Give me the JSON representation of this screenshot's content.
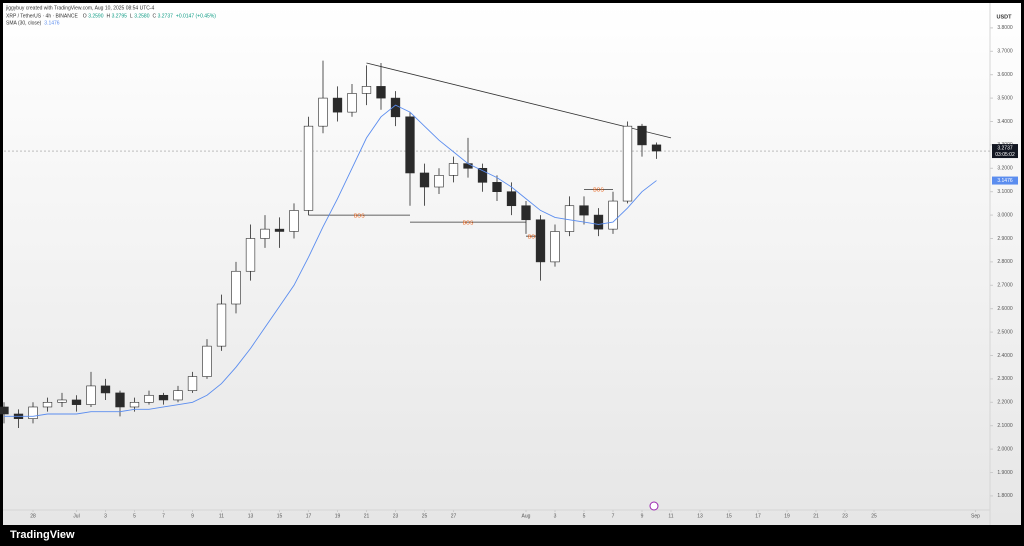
{
  "chart_data": {
    "type": "candlestick",
    "header": "jiggybuy created with TradingView.com, Aug 10, 2025 08:54 UTC-4",
    "symbol": "XRP / TetherUS · 4h · BINANCE",
    "ohlc_legend": [
      [
        "O",
        "3.2590"
      ],
      [
        "H",
        "3.2795"
      ],
      [
        "L",
        "3.2580"
      ],
      [
        "C",
        "3.2737"
      ]
    ],
    "change": "+0.0147 (+0.45%)",
    "currency": "USDT",
    "countdown": "03:05:02",
    "brand": "TradingView",
    "up_color": "#ffffff",
    "down_color": "#2a2a2a",
    "wick_color": "#2a2a2a",
    "x": [
      "2025-06-26",
      "2025-06-27",
      "2025-06-28",
      "2025-06-29",
      "2025-06-30",
      "2025-07-01",
      "2025-07-02",
      "2025-07-03",
      "2025-07-04",
      "2025-07-05",
      "2025-07-06",
      "2025-07-07",
      "2025-07-08",
      "2025-07-09",
      "2025-07-10",
      "2025-07-11",
      "2025-07-12",
      "2025-07-13",
      "2025-07-14",
      "2025-07-15",
      "2025-07-16",
      "2025-07-17",
      "2025-07-18",
      "2025-07-19",
      "2025-07-20",
      "2025-07-21",
      "2025-07-22",
      "2025-07-23",
      "2025-07-24",
      "2025-07-25",
      "2025-07-26",
      "2025-07-27",
      "2025-07-28",
      "2025-07-29",
      "2025-07-30",
      "2025-07-31",
      "2025-08-01",
      "2025-08-02",
      "2025-08-03",
      "2025-08-04",
      "2025-08-05",
      "2025-08-06",
      "2025-08-07",
      "2025-08-08",
      "2025-08-09",
      "2025-08-10"
    ],
    "open": [
      2.18,
      2.15,
      2.13,
      2.18,
      2.2,
      2.21,
      2.19,
      2.27,
      2.24,
      2.18,
      2.2,
      2.23,
      2.21,
      2.25,
      2.31,
      2.44,
      2.62,
      2.76,
      2.9,
      2.94,
      2.93,
      3.02,
      3.38,
      3.5,
      3.44,
      3.52,
      3.55,
      3.5,
      3.42,
      3.18,
      3.12,
      3.17,
      3.22,
      3.2,
      3.14,
      3.1,
      3.04,
      2.98,
      2.8,
      2.93,
      3.04,
      3.0,
      2.94,
      3.06,
      3.38,
      3.3
    ],
    "high": [
      2.2,
      2.17,
      2.2,
      2.22,
      2.24,
      2.23,
      2.33,
      2.3,
      2.25,
      2.22,
      2.25,
      2.24,
      2.27,
      2.33,
      2.47,
      2.66,
      2.8,
      2.96,
      3.0,
      2.99,
      3.05,
      3.42,
      3.66,
      3.55,
      3.56,
      3.64,
      3.65,
      3.53,
      3.44,
      3.22,
      3.2,
      3.25,
      3.33,
      3.22,
      3.17,
      3.14,
      3.06,
      3.0,
      2.96,
      3.08,
      3.08,
      3.03,
      3.1,
      3.4,
      3.39,
      3.31
    ],
    "low": [
      2.11,
      2.09,
      2.11,
      2.16,
      2.18,
      2.16,
      2.18,
      2.21,
      2.14,
      2.16,
      2.19,
      2.19,
      2.2,
      2.24,
      2.3,
      2.42,
      2.58,
      2.72,
      2.86,
      2.86,
      2.9,
      3.0,
      3.35,
      3.4,
      3.42,
      3.47,
      3.45,
      3.38,
      3.04,
      3.04,
      3.09,
      3.14,
      3.16,
      3.1,
      3.06,
      3.0,
      2.92,
      2.72,
      2.78,
      2.91,
      2.96,
      2.91,
      2.92,
      3.05,
      3.25,
      3.24
    ],
    "close": [
      2.15,
      2.13,
      2.18,
      2.2,
      2.21,
      2.19,
      2.27,
      2.24,
      2.18,
      2.2,
      2.23,
      2.21,
      2.25,
      2.31,
      2.44,
      2.62,
      2.76,
      2.9,
      2.94,
      2.93,
      3.02,
      3.38,
      3.5,
      3.44,
      3.52,
      3.55,
      3.5,
      3.42,
      3.18,
      3.12,
      3.17,
      3.22,
      3.2,
      3.14,
      3.1,
      3.04,
      2.98,
      2.8,
      2.93,
      3.04,
      3.0,
      2.94,
      3.06,
      3.38,
      3.3,
      3.2737
    ],
    "sma": {
      "name": "SMA (30, close)",
      "color": "#5b8def",
      "values": [
        2.14,
        2.14,
        2.14,
        2.15,
        2.15,
        2.15,
        2.16,
        2.16,
        2.16,
        2.17,
        2.17,
        2.18,
        2.19,
        2.2,
        2.23,
        2.28,
        2.35,
        2.43,
        2.52,
        2.61,
        2.7,
        2.82,
        2.95,
        3.07,
        3.2,
        3.33,
        3.42,
        3.47,
        3.44,
        3.38,
        3.32,
        3.27,
        3.22,
        3.19,
        3.16,
        3.12,
        3.07,
        3.02,
        2.99,
        2.98,
        2.97,
        2.96,
        2.97,
        3.03,
        3.1,
        3.1476
      ]
    },
    "trendline": {
      "from": [
        "2025-07-21",
        3.65
      ],
      "to": [
        "2025-08-11",
        3.33
      ]
    },
    "bos": [
      {
        "label": "BOS",
        "from": "2025-07-17",
        "to": "2025-07-24",
        "price": 3.0
      },
      {
        "label": "BOS",
        "from": "2025-07-24",
        "to": "2025-08-01",
        "price": 2.97
      },
      {
        "label": "BOS",
        "from": "2025-08-01",
        "to": "2025-08-02",
        "price": 2.91
      },
      {
        "label": "BOS",
        "from": "2025-08-05",
        "to": "2025-08-07",
        "price": 3.11
      }
    ],
    "bos_color": "#e8590c",
    "xlim": [
      "2025-06-26",
      "2025-09-02"
    ],
    "xticks": [
      {
        "value": "2025-06-28",
        "label": "28"
      },
      {
        "value": "2025-07-01",
        "label": "Jul"
      },
      {
        "value": "2025-07-03",
        "label": "3"
      },
      {
        "value": "2025-07-05",
        "label": "5"
      },
      {
        "value": "2025-07-07",
        "label": "7"
      },
      {
        "value": "2025-07-09",
        "label": "9"
      },
      {
        "value": "2025-07-11",
        "label": "11"
      },
      {
        "value": "2025-07-13",
        "label": "13"
      },
      {
        "value": "2025-07-15",
        "label": "15"
      },
      {
        "value": "2025-07-17",
        "label": "17"
      },
      {
        "value": "2025-07-19",
        "label": "19"
      },
      {
        "value": "2025-07-21",
        "label": "21"
      },
      {
        "value": "2025-07-23",
        "label": "23"
      },
      {
        "value": "2025-07-25",
        "label": "25"
      },
      {
        "value": "2025-07-27",
        "label": "27"
      },
      {
        "value": "2025-08-01",
        "label": "Aug"
      },
      {
        "value": "2025-08-03",
        "label": "3"
      },
      {
        "value": "2025-08-05",
        "label": "5"
      },
      {
        "value": "2025-08-07",
        "label": "7"
      },
      {
        "value": "2025-08-09",
        "label": "9"
      },
      {
        "value": "2025-08-11",
        "label": "11"
      },
      {
        "value": "2025-08-13",
        "label": "13"
      },
      {
        "value": "2025-08-15",
        "label": "15"
      },
      {
        "value": "2025-08-17",
        "label": "17"
      },
      {
        "value": "2025-08-19",
        "label": "19"
      },
      {
        "value": "2025-08-21",
        "label": "21"
      },
      {
        "value": "2025-08-23",
        "label": "23"
      },
      {
        "value": "2025-08-25",
        "label": "25"
      },
      {
        "value": "2025-09-01",
        "label": "Sep"
      }
    ],
    "ylim": [
      1.697,
      3.885
    ],
    "yticks": [
      {
        "value": 1.8,
        "label": "1.8000"
      },
      {
        "value": 1.9,
        "label": "1.9000"
      },
      {
        "value": 2.0,
        "label": "2.0000"
      },
      {
        "value": 2.1,
        "label": "2.1000"
      },
      {
        "value": 2.2,
        "label": "2.2000"
      },
      {
        "value": 2.3,
        "label": "2.3000"
      },
      {
        "value": 2.4,
        "label": "2.4000"
      },
      {
        "value": 2.5,
        "label": "2.5000"
      },
      {
        "value": 2.6,
        "label": "2.6000"
      },
      {
        "value": 2.7,
        "label": "2.7000"
      },
      {
        "value": 2.8,
        "label": "2.8000"
      },
      {
        "value": 2.9,
        "label": "2.9000"
      },
      {
        "value": 3.0,
        "label": "3.0000"
      },
      {
        "value": 3.1,
        "label": "3.1000"
      },
      {
        "value": 3.2,
        "label": "3.2000"
      },
      {
        "value": 3.3,
        "label": "3.3000"
      },
      {
        "value": 3.4,
        "label": "3.4000"
      },
      {
        "value": 3.5,
        "label": "3.5000"
      },
      {
        "value": 3.6,
        "label": "3.6000"
      },
      {
        "value": 3.7,
        "label": "3.7000"
      },
      {
        "value": 3.8,
        "label": "3.8000"
      }
    ],
    "grid": false
  }
}
